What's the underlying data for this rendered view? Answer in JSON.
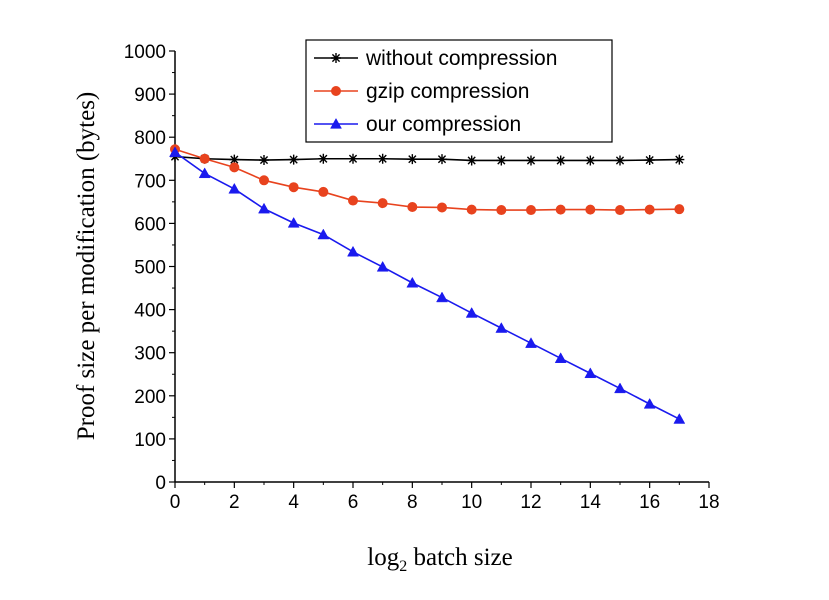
{
  "chart_data": {
    "type": "line",
    "xlabel_main": "log",
    "xlabel_sub": "2",
    "xlabel_rest": " batch  size",
    "ylabel": "Proof size per modification (bytes)",
    "xlim": [
      0,
      18
    ],
    "ylim": [
      0,
      1000
    ],
    "xticks": [
      0,
      2,
      4,
      6,
      8,
      10,
      12,
      14,
      16,
      18
    ],
    "yticks": [
      0,
      100,
      200,
      300,
      400,
      500,
      600,
      700,
      800,
      900,
      1000
    ],
    "grid": false,
    "legend_position": "top-center",
    "x": [
      0,
      1,
      2,
      3,
      4,
      5,
      6,
      7,
      8,
      9,
      10,
      11,
      12,
      13,
      14,
      15,
      16,
      17
    ],
    "series": [
      {
        "name": "without compression",
        "color": "#000000",
        "marker": "star",
        "values": [
          755,
          750,
          748,
          747,
          748,
          750,
          750,
          750,
          749,
          749,
          746,
          746,
          746,
          746,
          746,
          746,
          747,
          748
        ]
      },
      {
        "name": "gzip compression",
        "color": "#e8431e",
        "marker": "circle",
        "values": [
          772,
          750,
          730,
          700,
          684,
          673,
          653,
          647,
          638,
          637,
          632,
          631,
          631,
          632,
          632,
          631,
          632,
          633
        ]
      },
      {
        "name": "our compression",
        "color": "#1a1aee",
        "marker": "triangle",
        "values": [
          765,
          716,
          680,
          634,
          601,
          574,
          534,
          499,
          462,
          428,
          392,
          357,
          322,
          287,
          252,
          217,
          181,
          146
        ]
      }
    ]
  }
}
